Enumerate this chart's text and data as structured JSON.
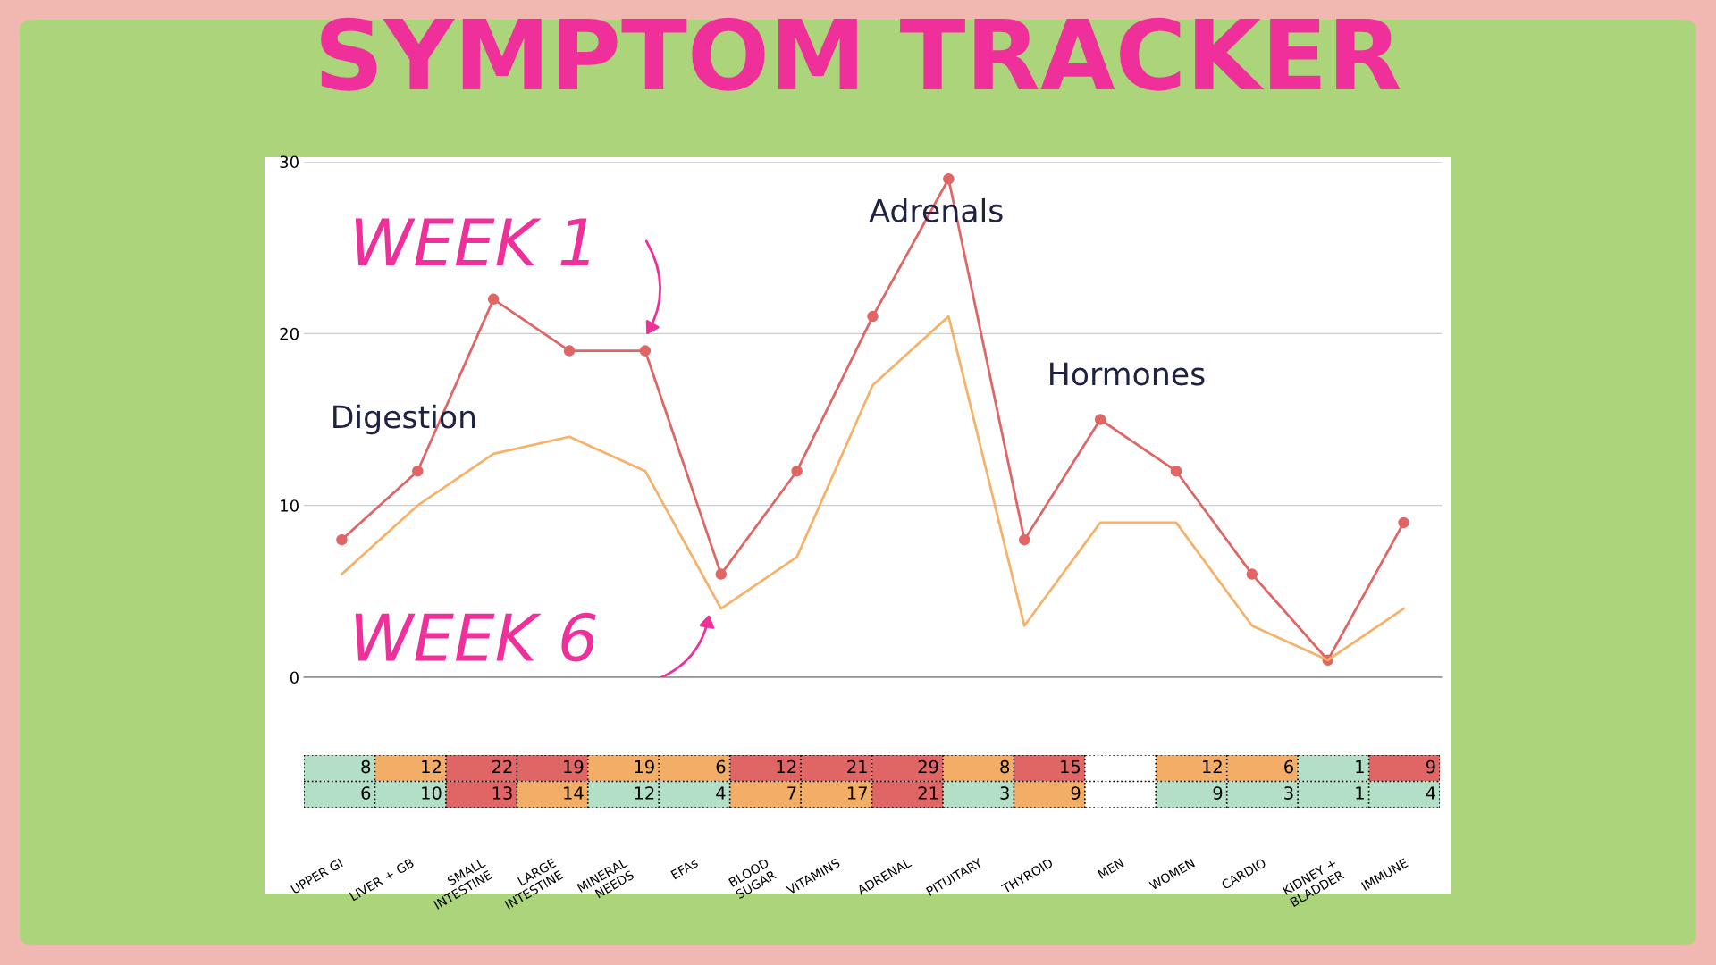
{
  "chart_data": [
    {
      "type": "line",
      "title": "SYMPTOM TRACKER",
      "categories": [
        null,
        null,
        null,
        null,
        null,
        null,
        null,
        null,
        null,
        null,
        null,
        null,
        null,
        null,
        null
      ],
      "series": [
        {
          "color": "#e06666",
          "marker": "circle",
          "values": [
            8,
            12,
            22,
            19,
            19,
            6,
            12,
            21,
            29,
            8,
            15,
            12,
            6,
            1,
            9
          ]
        },
        {
          "color": "#f6b26b",
          "marker": "none",
          "values": [
            6,
            10,
            13,
            14,
            12,
            4,
            7,
            17,
            21,
            3,
            9,
            9,
            3,
            1,
            4
          ]
        }
      ],
      "ylim": [
        0,
        30
      ],
      "yticks": [
        0,
        10,
        20,
        30
      ],
      "grid": "y",
      "tick_labels": "y",
      "line_style": "solid",
      "annotations": [
        "Digestion",
        "Adrenals",
        "Hormones",
        "WEEK 1",
        "WEEK 6"
      ]
    },
    {
      "type": "heatmap",
      "categories": [
        "UPPER GI",
        "LIVER + GB",
        "SMALL\nINTESTINE",
        "LARGE\nINTESTINE",
        "MINERAL\nNEEDS",
        "EFAs",
        "BLOOD\nSUGAR",
        "VITAMINS",
        "ADRENAL",
        "PITUITARY",
        "THYROID",
        "MEN",
        "WOMEN",
        "CARDIO",
        "KIDNEY +\nBLADDER",
        "IMMUNE"
      ],
      "y_categories": [
        null,
        null
      ],
      "cells": [
        [
          8,
          12,
          22,
          19,
          19,
          6,
          12,
          21,
          29,
          8,
          15,
          null,
          12,
          6,
          1,
          9
        ],
        [
          6,
          10,
          13,
          14,
          12,
          4,
          7,
          17,
          21,
          3,
          9,
          null,
          9,
          3,
          1,
          4
        ]
      ],
      "colors": [
        [
          "#b3dfc6",
          "#f2ae66",
          "#e06666",
          "#e06666",
          "#f2ae66",
          "#f2ae66",
          "#e06666",
          "#e06666",
          "#e06666",
          "#f2ae66",
          "#e06666",
          null,
          "#f2ae66",
          "#f2ae66",
          "#b3dfc6",
          "#e06666"
        ],
        [
          "#b3dfc6",
          "#b3dfc6",
          "#e06666",
          "#f2ae66",
          "#b3dfc6",
          "#b3dfc6",
          "#f2ae66",
          "#f2ae66",
          "#e06666",
          "#b3dfc6",
          "#f2ae66",
          null,
          "#b3dfc6",
          "#b3dfc6",
          "#b3dfc6",
          "#b3dfc6"
        ]
      ],
      "data_labels": true
    }
  ]
}
